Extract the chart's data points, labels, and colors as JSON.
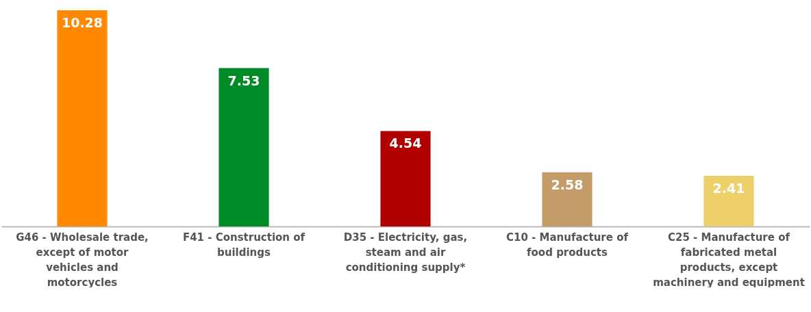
{
  "chart_data": {
    "type": "bar",
    "categories": [
      "G46 - Wholesale trade, except of motor vehicles and motorcycles",
      "F41 - Construction of buildings",
      "D35 - Electricity, gas, steam and air conditioning supply*",
      "C10 - Manufacture of food products",
      "C25 - Manufacture of fabricated metal products, except machinery and equipment"
    ],
    "values": [
      10.28,
      7.53,
      4.54,
      2.58,
      2.41
    ],
    "colors": [
      "#ff8800",
      "#008a28",
      "#b00000",
      "#c49c69",
      "#edd06a"
    ],
    "data_labels": true
  }
}
